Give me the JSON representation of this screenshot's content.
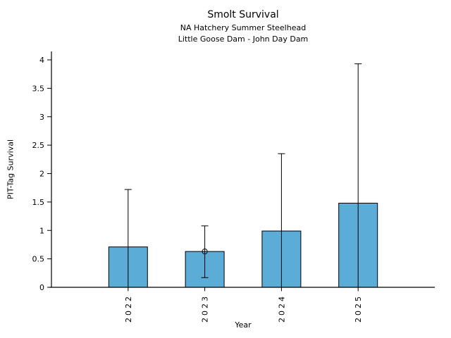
{
  "chart_data": {
    "type": "bar",
    "title": "Smolt Survival",
    "subtitle1": "NA Hatchery Summer Steelhead",
    "subtitle2": "Little Goose Dam - John Day Dam",
    "xlabel": "Year",
    "ylabel": "PIT-Tag Survival",
    "categories": [
      "2022",
      "2023",
      "2024",
      "2025"
    ],
    "series": [
      {
        "name": "PIT-Tag Survival",
        "values": [
          0.71,
          0.63,
          0.99,
          1.48
        ]
      }
    ],
    "error_low": [
      0,
      0.17,
      0,
      0
    ],
    "error_high": [
      1.72,
      1.08,
      2.35,
      3.93
    ],
    "point_markers": [
      {
        "category": "2023",
        "value": 0.63,
        "style": "open-circle"
      }
    ],
    "ylim": [
      0,
      4
    ],
    "yticks": [
      0,
      0.5,
      1,
      1.5,
      2,
      2.5,
      3,
      3.5,
      4
    ],
    "grid": false,
    "legend": null,
    "bar_color": "#5BACD7",
    "bar_edge_color": "#000000",
    "axis_color": "#000000"
  }
}
